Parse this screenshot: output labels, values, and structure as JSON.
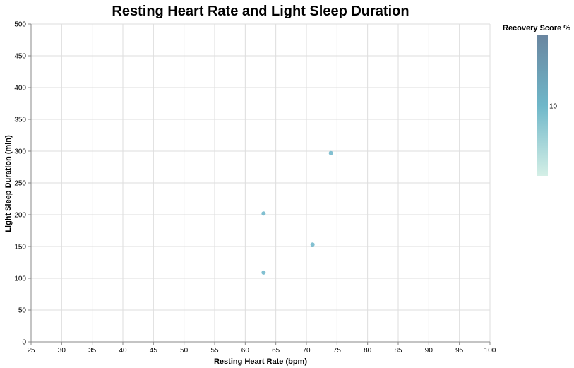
{
  "chart_data": {
    "type": "scatter",
    "title": "Resting Heart Rate and Light Sleep Duration",
    "xlabel": "Resting Heart Rate (bpm)",
    "ylabel": "Light Sleep Duration (min)",
    "xlim": [
      25,
      100
    ],
    "ylim": [
      0,
      500
    ],
    "x_ticks": [
      "25",
      "30",
      "35",
      "40",
      "45",
      "50",
      "55",
      "60",
      "65",
      "70",
      "75",
      "80",
      "85",
      "90",
      "95",
      "100"
    ],
    "y_ticks": [
      "0",
      "50",
      "100",
      "150",
      "200",
      "250",
      "300",
      "350",
      "400",
      "450",
      "500"
    ],
    "grid": true,
    "points": [
      {
        "x": 63,
        "y": 202,
        "color": "#74b9cc"
      },
      {
        "x": 63,
        "y": 109,
        "color": "#74b9cc"
      },
      {
        "x": 71,
        "y": 153,
        "color": "#74b9cc"
      },
      {
        "x": 74,
        "y": 297,
        "color": "#74b9cc"
      }
    ],
    "legend": {
      "title": "Recovery Score %",
      "position": "top-right",
      "ticks": [
        "10"
      ],
      "gradient_colors": [
        "#d4efe6",
        "#6fb7c9",
        "#6a86a0"
      ]
    }
  }
}
